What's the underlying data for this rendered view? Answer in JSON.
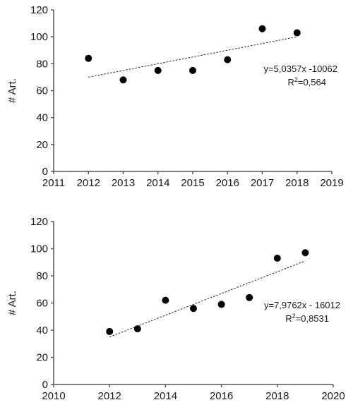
{
  "chart_data": [
    {
      "type": "scatter",
      "ylabel": "# Art.",
      "xlim": [
        2011,
        2019
      ],
      "ylim": [
        0,
        120
      ],
      "xticks": [
        "2011",
        "2012",
        "2013",
        "2014",
        "2015",
        "2016",
        "2017",
        "2018",
        "2019"
      ],
      "yticks": [
        "0",
        "20",
        "40",
        "60",
        "80",
        "100",
        "120"
      ],
      "x": [
        2012,
        2013,
        2014,
        2015,
        2016,
        2017,
        2018
      ],
      "y": [
        84,
        68,
        75,
        75,
        83,
        106,
        103
      ],
      "trendline": {
        "x": [
          2012,
          2018
        ],
        "y": [
          70,
          100
        ]
      },
      "equation": "y=5,0357x -10062",
      "r2_prefix": "R",
      "r2_sup": "2",
      "r2_value": "=0,564"
    },
    {
      "type": "scatter",
      "ylabel": "# Art.",
      "xlim": [
        2010,
        2020
      ],
      "ylim": [
        0,
        120
      ],
      "xticks": [
        "2010",
        "2012",
        "2014",
        "2016",
        "2018",
        "2020"
      ],
      "yticks": [
        "0",
        "20",
        "40",
        "60",
        "80",
        "100",
        "120"
      ],
      "x": [
        2012,
        2013,
        2014,
        2015,
        2016,
        2017,
        2018,
        2019
      ],
      "y": [
        39,
        41,
        62,
        56,
        59,
        64,
        93,
        97
      ],
      "trendline": {
        "x": [
          2012,
          2019
        ],
        "y": [
          35,
          91
        ]
      },
      "equation": "y=7,9762x - 16012",
      "r2_prefix": "R",
      "r2_sup": "2",
      "r2_value": "=0,8531"
    }
  ]
}
